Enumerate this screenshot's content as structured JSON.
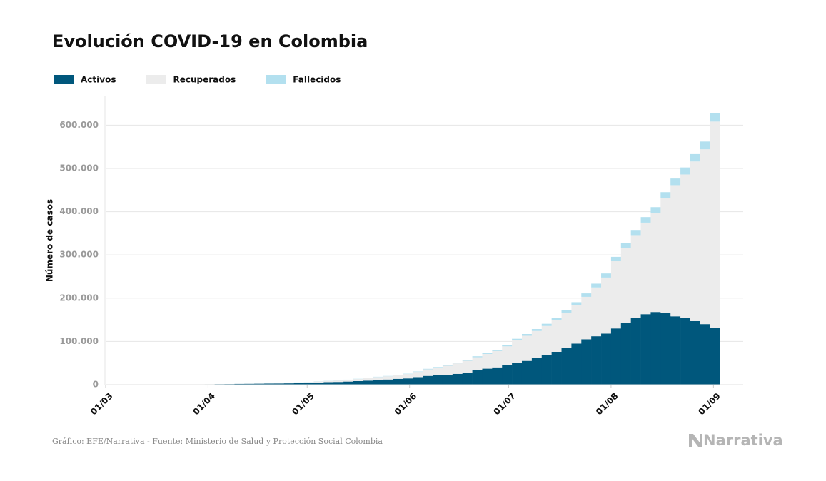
{
  "chart_data": {
    "type": "stacked-bar",
    "title": "Evolución COVID-19 en Colombia",
    "y_label": "Número de casos",
    "source": "Gráfico: EFE/Narrativa - Fuente: Ministerio de Salud y Protección Social Colombia",
    "logo": "Narrativa",
    "x": [
      0,
      3,
      6,
      9,
      12,
      15,
      18,
      21,
      24,
      27,
      30,
      33,
      36,
      39,
      42,
      45,
      48,
      51,
      54,
      57,
      60,
      63,
      66,
      69,
      72,
      75,
      78,
      81,
      84,
      87,
      90,
      93,
      96,
      99,
      102,
      105,
      108,
      111,
      114,
      117,
      120,
      123,
      126,
      129,
      132,
      135,
      138,
      141,
      144,
      147,
      150,
      153,
      156,
      159,
      162,
      165,
      168,
      171,
      174,
      177,
      180,
      183
    ],
    "xlim": [
      0,
      193
    ],
    "xticks": [
      {
        "value": 0,
        "label": "01/03"
      },
      {
        "value": 31,
        "label": "01/04"
      },
      {
        "value": 61,
        "label": "01/05"
      },
      {
        "value": 92,
        "label": "01/06"
      },
      {
        "value": 122,
        "label": "01/07"
      },
      {
        "value": 153,
        "label": "01/08"
      },
      {
        "value": 184,
        "label": "01/09"
      }
    ],
    "ylim": [
      0,
      660000
    ],
    "yticks": [
      0,
      {
        "value": 100000,
        "label": "100.000"
      },
      {
        "value": 200000,
        "label": "200.000"
      },
      {
        "value": 300000,
        "label": "300.000"
      },
      {
        "value": 400000,
        "label": "400.000"
      },
      {
        "value": 500000,
        "label": "500.000"
      },
      {
        "value": 600000,
        "label": "600.000"
      }
    ],
    "grid": true,
    "series": [
      {
        "name": "Activos",
        "color": "#00577c",
        "values": [
          0,
          0,
          1,
          3,
          9,
          34,
          91,
          205,
          368,
          520,
          860,
          1180,
          1420,
          1800,
          2100,
          2300,
          2500,
          2800,
          3100,
          3600,
          4000,
          5100,
          5800,
          6300,
          7200,
          8300,
          9400,
          11000,
          12000,
          13500,
          14500,
          17500,
          20300,
          21500,
          22500,
          25000,
          28000,
          33000,
          37000,
          40000,
          45000,
          50000,
          55000,
          62000,
          68000,
          76000,
          85000,
          95000,
          105000,
          112000,
          118000,
          130000,
          143000,
          155000,
          163000,
          168000,
          166000,
          158000,
          155000,
          147000,
          140000,
          132000
        ]
      },
      {
        "name": "Recuperados",
        "color": "#ececec",
        "values": [
          0,
          0,
          0,
          0,
          0,
          0,
          1,
          2,
          6,
          13,
          30,
          62,
          109,
          174,
          273,
          435,
          589,
          818,
          1060,
          1312,
          1680,
          2228,
          2762,
          3323,
          3934,
          4785,
          5600,
          6678,
          7472,
          8727,
          10044,
          11984,
          15130,
          17847,
          21224,
          24272,
          27130,
          30390,
          34019,
          37790,
          43663,
          52469,
          58046,
          62111,
          67657,
          72652,
          81690,
          88534,
          98063,
          112764,
          129647,
          155403,
          173833,
          190771,
          211639,
          228978,
          264619,
          303288,
          330995,
          369050,
          404224,
          476300
        ]
      },
      {
        "name": "Fallecidos",
        "color": "#b3e0ef",
        "values": [
          0,
          0,
          0,
          0,
          0,
          0,
          1,
          3,
          4,
          6,
          16,
          25,
          50,
          80,
          100,
          117,
          144,
          174,
          196,
          230,
          269,
          340,
          397,
          428,
          479,
          525,
          574,
          652,
          705,
          776,
          822,
          1009,
          1205,
          1372,
          1488,
          1667,
          1916,
          2243,
          2553,
          2809,
          3106,
          3641,
          4064,
          4527,
          5119,
          5625,
          6516,
          7166,
          7975,
          8777,
          9454,
          10105,
          11017,
          11939,
          12842,
          13475,
          14492,
          15372,
          16183,
          17053,
          17889,
          19700
        ]
      }
    ]
  }
}
